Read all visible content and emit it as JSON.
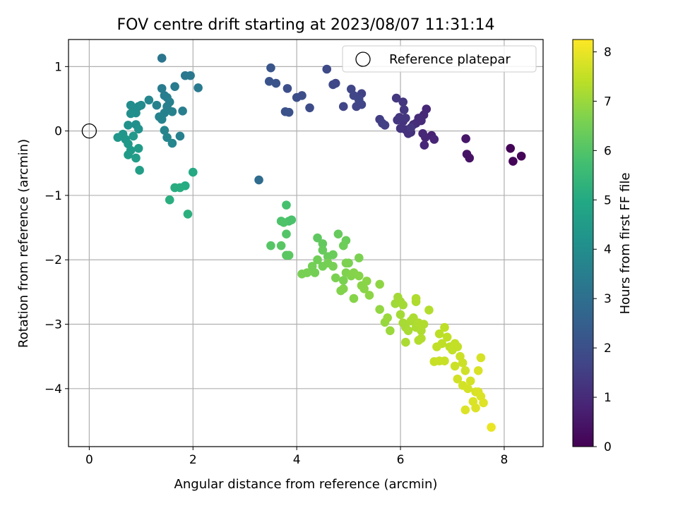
{
  "chart_data": {
    "type": "scatter",
    "title": "FOV centre drift starting at 2023/08/07 11:31:14",
    "xlabel": "Angular distance from reference (arcmin)",
    "ylabel": "Rotation from reference (arcmin)",
    "xlim": [
      -0.4,
      8.75
    ],
    "ylim": [
      -4.9,
      1.42
    ],
    "xticks": [
      0,
      2,
      4,
      6,
      8
    ],
    "yticks": [
      -4,
      -3,
      -2,
      -1,
      0,
      1
    ],
    "grid": true,
    "colormap": "viridis",
    "colorbar": {
      "label": "Hours from first FF file",
      "range": [
        0,
        8.25
      ],
      "ticks": [
        0,
        1,
        2,
        3,
        4,
        5,
        6,
        7,
        8
      ]
    },
    "legend": {
      "position": "top-right",
      "entries": [
        "Reference platepar"
      ]
    },
    "reference_point": {
      "x": 0,
      "y": 0
    },
    "points": [
      [
        8.12,
        -0.27,
        0.05
      ],
      [
        8.17,
        -0.47,
        0.1
      ],
      [
        8.33,
        -0.39,
        0.08
      ],
      [
        7.26,
        -0.12,
        0.5
      ],
      [
        7.28,
        -0.36,
        0.45
      ],
      [
        7.33,
        -0.42,
        0.4
      ],
      [
        6.6,
        -0.07,
        0.8
      ],
      [
        6.65,
        -0.13,
        0.85
      ],
      [
        6.5,
        0.34,
        0.9
      ],
      [
        6.45,
        0.25,
        0.95
      ],
      [
        6.4,
        0.16,
        1.0
      ],
      [
        6.35,
        0.2,
        1.02
      ],
      [
        6.3,
        0.12,
        1.05
      ],
      [
        6.25,
        0.1,
        1.07
      ],
      [
        6.48,
        -0.1,
        0.88
      ],
      [
        6.46,
        -0.22,
        0.9
      ],
      [
        6.43,
        -0.04,
        0.92
      ],
      [
        6.2,
        -0.02,
        1.1
      ],
      [
        6.15,
        -0.04,
        1.15
      ],
      [
        6.1,
        0.02,
        1.15
      ],
      [
        6.05,
        0.15,
        1.2
      ],
      [
        6.0,
        0.04,
        1.25
      ],
      [
        5.98,
        0.21,
        1.28
      ],
      [
        5.94,
        0.17,
        1.3
      ],
      [
        6.05,
        0.45,
        1.3
      ],
      [
        6.07,
        0.33,
        1.32
      ],
      [
        6.1,
        0.2,
        1.3
      ],
      [
        5.92,
        0.51,
        1.35
      ],
      [
        6.2,
        0.05,
        1.3
      ],
      [
        5.6,
        0.18,
        1.5
      ],
      [
        5.65,
        0.12,
        1.55
      ],
      [
        5.7,
        0.09,
        1.58
      ],
      [
        5.25,
        0.58,
        1.6
      ],
      [
        5.2,
        0.48,
        1.65
      ],
      [
        5.25,
        0.41,
        1.7
      ],
      [
        5.15,
        0.38,
        1.68
      ],
      [
        5.05,
        0.65,
        1.7
      ],
      [
        5.2,
        0.49,
        1.75
      ],
      [
        4.9,
        0.38,
        1.7
      ],
      [
        4.75,
        0.74,
        1.75
      ],
      [
        4.7,
        0.72,
        1.8
      ],
      [
        4.58,
        0.96,
        1.82
      ],
      [
        5.1,
        0.55,
        1.72
      ],
      [
        4.25,
        0.36,
        1.9
      ],
      [
        4.1,
        0.55,
        1.95
      ],
      [
        4.0,
        0.52,
        1.97
      ],
      [
        3.82,
        0.66,
        2.0
      ],
      [
        3.78,
        0.3,
        2.05
      ],
      [
        3.85,
        0.29,
        2.08
      ],
      [
        3.6,
        0.74,
        2.12
      ],
      [
        3.47,
        0.77,
        2.15
      ],
      [
        3.5,
        0.98,
        2.18
      ],
      [
        3.27,
        -0.76,
        2.9
      ],
      [
        1.4,
        1.13,
        3.2
      ],
      [
        1.4,
        0.66,
        3.4
      ],
      [
        1.45,
        0.55,
        3.45
      ],
      [
        1.5,
        0.52,
        3.5
      ],
      [
        1.55,
        0.45,
        3.55
      ],
      [
        1.5,
        0.38,
        3.55
      ],
      [
        1.3,
        0.4,
        3.6
      ],
      [
        1.45,
        0.28,
        3.6
      ],
      [
        1.6,
        0.3,
        3.6
      ],
      [
        1.4,
        0.18,
        3.65
      ],
      [
        1.35,
        0.22,
        3.65
      ],
      [
        1.65,
        0.69,
        3.4
      ],
      [
        1.85,
        0.86,
        3.3
      ],
      [
        1.95,
        0.86,
        3.3
      ],
      [
        2.1,
        0.67,
        3.35
      ],
      [
        1.8,
        0.31,
        3.5
      ],
      [
        1.75,
        -0.08,
        3.55
      ],
      [
        1.45,
        0.01,
        3.7
      ],
      [
        1.5,
        -0.1,
        3.72
      ],
      [
        1.6,
        -0.19,
        3.75
      ],
      [
        1.15,
        0.48,
        3.8
      ],
      [
        1.0,
        0.4,
        3.9
      ],
      [
        0.95,
        0.38,
        3.95
      ],
      [
        0.85,
        0.35,
        4.0
      ],
      [
        0.8,
        0.4,
        4.0
      ],
      [
        0.9,
        0.28,
        4.02
      ],
      [
        0.8,
        0.27,
        4.05
      ],
      [
        0.9,
        0.1,
        4.1
      ],
      [
        0.75,
        0.09,
        4.12
      ],
      [
        0.95,
        0.03,
        4.15
      ],
      [
        0.55,
        -0.1,
        4.3
      ],
      [
        0.65,
        -0.05,
        4.3
      ],
      [
        0.7,
        -0.13,
        4.35
      ],
      [
        0.75,
        -0.2,
        4.4
      ],
      [
        0.85,
        -0.08,
        4.38
      ],
      [
        0.8,
        -0.3,
        4.45
      ],
      [
        0.75,
        -0.37,
        4.5
      ],
      [
        0.95,
        -0.27,
        4.5
      ],
      [
        0.9,
        -0.42,
        4.55
      ],
      [
        0.97,
        -0.61,
        4.6
      ],
      [
        2.0,
        -0.64,
        5.0
      ],
      [
        1.85,
        -0.85,
        5.05
      ],
      [
        1.65,
        -0.88,
        5.1
      ],
      [
        1.75,
        -0.88,
        5.12
      ],
      [
        1.55,
        -1.07,
        5.15
      ],
      [
        1.9,
        -1.29,
        5.2
      ],
      [
        3.8,
        -1.15,
        5.8
      ],
      [
        3.85,
        -1.4,
        5.85
      ],
      [
        3.9,
        -1.38,
        5.88
      ],
      [
        3.7,
        -1.4,
        5.9
      ],
      [
        3.75,
        -1.42,
        5.95
      ],
      [
        3.8,
        -1.6,
        6.0
      ],
      [
        3.5,
        -1.78,
        6.05
      ],
      [
        3.7,
        -1.78,
        6.1
      ],
      [
        3.8,
        -1.93,
        6.1
      ],
      [
        3.85,
        -1.93,
        6.12
      ],
      [
        4.4,
        -1.66,
        6.2
      ],
      [
        4.5,
        -1.75,
        6.25
      ],
      [
        4.5,
        -1.85,
        6.3
      ],
      [
        4.6,
        -1.95,
        6.35
      ],
      [
        4.7,
        -1.92,
        6.35
      ],
      [
        4.8,
        -1.6,
        6.3
      ],
      [
        4.95,
        -1.7,
        6.35
      ],
      [
        4.9,
        -1.78,
        6.4
      ],
      [
        4.4,
        -2.0,
        6.45
      ],
      [
        4.3,
        -2.1,
        6.5
      ],
      [
        4.35,
        -2.2,
        6.5
      ],
      [
        4.2,
        -2.2,
        6.55
      ],
      [
        4.1,
        -2.22,
        6.55
      ],
      [
        4.5,
        -2.1,
        6.5
      ],
      [
        4.6,
        -2.05,
        6.52
      ],
      [
        4.7,
        -2.1,
        6.55
      ],
      [
        4.75,
        -2.28,
        6.6
      ],
      [
        4.9,
        -2.32,
        6.6
      ],
      [
        5.0,
        -2.05,
        6.58
      ],
      [
        5.2,
        -1.97,
        6.6
      ],
      [
        4.95,
        -2.05,
        6.62
      ],
      [
        4.95,
        -2.2,
        6.65
      ],
      [
        4.9,
        -2.45,
        6.7
      ],
      [
        4.85,
        -2.48,
        6.7
      ],
      [
        5.05,
        -2.25,
        6.7
      ],
      [
        5.1,
        -2.2,
        6.72
      ],
      [
        5.1,
        -2.6,
        6.75
      ],
      [
        5.2,
        -2.25,
        6.75
      ],
      [
        5.25,
        -2.4,
        6.78
      ],
      [
        5.3,
        -2.45,
        6.78
      ],
      [
        5.35,
        -2.33,
        6.8
      ],
      [
        5.4,
        -2.55,
        6.82
      ],
      [
        5.6,
        -2.38,
        6.85
      ],
      [
        5.6,
        -2.77,
        6.9
      ],
      [
        5.7,
        -2.97,
        6.95
      ],
      [
        5.75,
        -2.9,
        7.0
      ],
      [
        5.8,
        -3.1,
        7.0
      ],
      [
        5.9,
        -2.68,
        7.05
      ],
      [
        5.95,
        -2.58,
        7.1
      ],
      [
        6.0,
        -2.65,
        7.1
      ],
      [
        6.05,
        -2.7,
        7.12
      ],
      [
        6.0,
        -2.85,
        7.12
      ],
      [
        6.05,
        -2.98,
        7.15
      ],
      [
        6.1,
        -3.05,
        7.15
      ],
      [
        6.15,
        -3.1,
        7.18
      ],
      [
        6.1,
        -3.28,
        7.2
      ],
      [
        6.2,
        -2.95,
        7.2
      ],
      [
        6.25,
        -2.9,
        7.22
      ],
      [
        6.3,
        -3.05,
        7.22
      ],
      [
        6.35,
        -2.98,
        7.25
      ],
      [
        6.4,
        -3.1,
        7.25
      ],
      [
        6.45,
        -3.0,
        7.27
      ],
      [
        6.3,
        -2.65,
        7.25
      ],
      [
        6.3,
        -2.6,
        7.25
      ],
      [
        6.35,
        -3.25,
        7.3
      ],
      [
        6.4,
        -3.22,
        7.3
      ],
      [
        6.55,
        -2.78,
        7.3
      ],
      [
        6.75,
        -3.15,
        7.4
      ],
      [
        6.85,
        -3.05,
        7.42
      ],
      [
        6.9,
        -3.2,
        7.45
      ],
      [
        6.95,
        -3.35,
        7.45
      ],
      [
        7.0,
        -3.4,
        7.48
      ],
      [
        6.8,
        -3.3,
        7.45
      ],
      [
        6.7,
        -3.35,
        7.47
      ],
      [
        7.05,
        -3.3,
        7.5
      ],
      [
        7.1,
        -3.35,
        7.5
      ],
      [
        6.65,
        -3.58,
        7.55
      ],
      [
        6.75,
        -3.57,
        7.57
      ],
      [
        6.85,
        -3.57,
        7.57
      ],
      [
        7.05,
        -3.65,
        7.6
      ],
      [
        7.15,
        -3.5,
        7.62
      ],
      [
        7.2,
        -3.6,
        7.62
      ],
      [
        7.25,
        -3.72,
        7.65
      ],
      [
        7.1,
        -3.85,
        7.68
      ],
      [
        7.2,
        -3.95,
        7.7
      ],
      [
        7.3,
        -4.0,
        7.72
      ],
      [
        7.35,
        -3.88,
        7.72
      ],
      [
        7.45,
        -4.05,
        7.75
      ],
      [
        7.5,
        -4.05,
        7.78
      ],
      [
        7.55,
        -4.12,
        7.8
      ],
      [
        7.4,
        -4.2,
        7.8
      ],
      [
        7.45,
        -4.3,
        7.82
      ],
      [
        7.25,
        -4.33,
        7.82
      ],
      [
        7.6,
        -4.22,
        7.85
      ],
      [
        7.55,
        -3.52,
        7.75
      ],
      [
        7.5,
        -3.72,
        7.78
      ],
      [
        7.75,
        -4.6,
        8.0
      ]
    ]
  }
}
